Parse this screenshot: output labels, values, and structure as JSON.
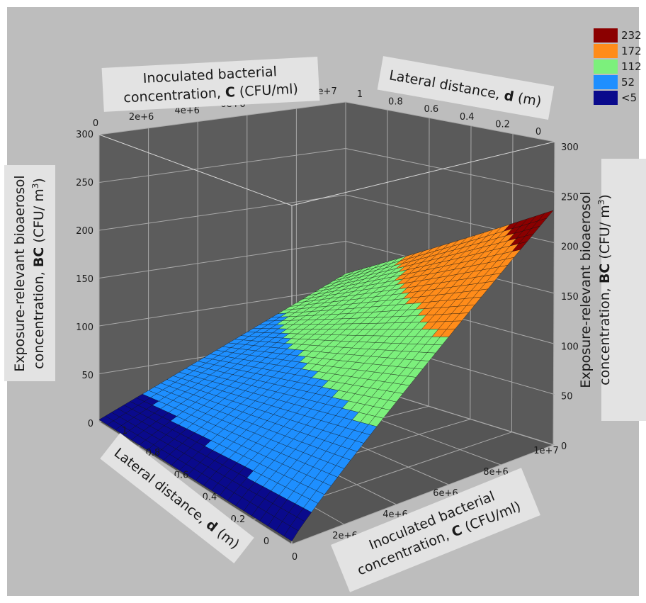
{
  "chart_data": {
    "type": "surface3d",
    "x_axis": {
      "label_line1": "Inoculated bacterial",
      "label_line2_prefix": "concentration, ",
      "label_symbol": "C",
      "label_unit": " (CFU/ml)",
      "ticks": [
        "0",
        "2e+6",
        "4e+6",
        "6e+6",
        "8e+6",
        "1e+7"
      ],
      "range": [
        0,
        10000000
      ]
    },
    "y_axis": {
      "label_prefix": "Lateral distance, ",
      "label_symbol": "d",
      "label_unit": " (m)",
      "top_label_unit": " (m)",
      "ticks": [
        "1",
        "0.8",
        "0.6",
        "0.4",
        "0.2",
        "0"
      ],
      "range": [
        0,
        1
      ]
    },
    "z_axis": {
      "label_line1_prefix": "Exposure-relevant ",
      "label_line1_suffix": "bioaerosol",
      "label_line2_prefix": "concentration, ",
      "label_symbol": "BC",
      "label_unit": " (CFU/ m",
      "label_unit_sup": "3",
      "label_unit_close": ")",
      "ticks": [
        "0",
        "50",
        "100",
        "150",
        "200",
        "250",
        "300"
      ],
      "range": [
        0,
        300
      ]
    },
    "surface": {
      "description_rows": "BC rises roughly linearly with C and decreases with lateral distance d",
      "corner_values": {
        "c0_d1": 2,
        "c0_d0": 3,
        "c1e7_d1": 110,
        "c1e7_d0": 232
      }
    },
    "legend": [
      {
        "label": "232",
        "color": "#8b0000"
      },
      {
        "label": "172",
        "color": "#ff8c1a"
      },
      {
        "label": "112",
        "color": "#7cf07c"
      },
      {
        "label": "52",
        "color": "#1e8fff"
      },
      {
        "label": "<5",
        "color": "#0a0a8c"
      }
    ],
    "colors": {
      "pane": "#5a5a5a",
      "background": "#bdbdbd",
      "grid": "#9a9a9a",
      "label_box": "#e3e3e3"
    }
  }
}
